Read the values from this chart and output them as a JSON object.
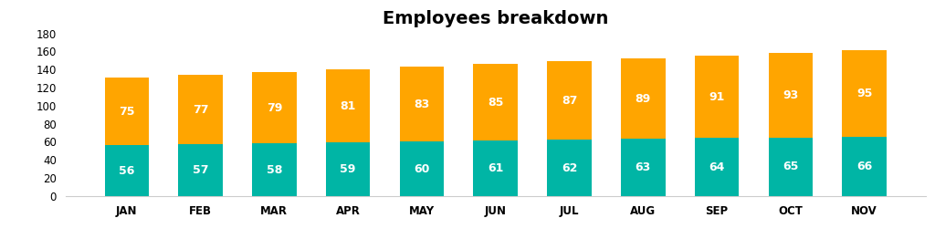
{
  "title": "Employees breakdown",
  "months": [
    "JAN",
    "FEB",
    "MAR",
    "APR",
    "MAY",
    "JUN",
    "JUL",
    "AUG",
    "SEP",
    "OCT",
    "NOV"
  ],
  "male_values": [
    56,
    57,
    58,
    59,
    60,
    61,
    62,
    63,
    64,
    65,
    66
  ],
  "female_values": [
    75,
    77,
    79,
    81,
    83,
    85,
    87,
    89,
    91,
    93,
    95
  ],
  "male_color": "#00B5A5",
  "female_color": "#FFA500",
  "bar_width": 0.6,
  "ylim": [
    0,
    180
  ],
  "yticks": [
    0,
    20,
    40,
    60,
    80,
    100,
    120,
    140,
    160,
    180
  ],
  "title_fontsize": 14,
  "label_fontsize": 9,
  "tick_fontsize": 8.5,
  "legend_fontsize": 9,
  "background_color": "#ffffff",
  "text_color_bar": "#ffffff"
}
